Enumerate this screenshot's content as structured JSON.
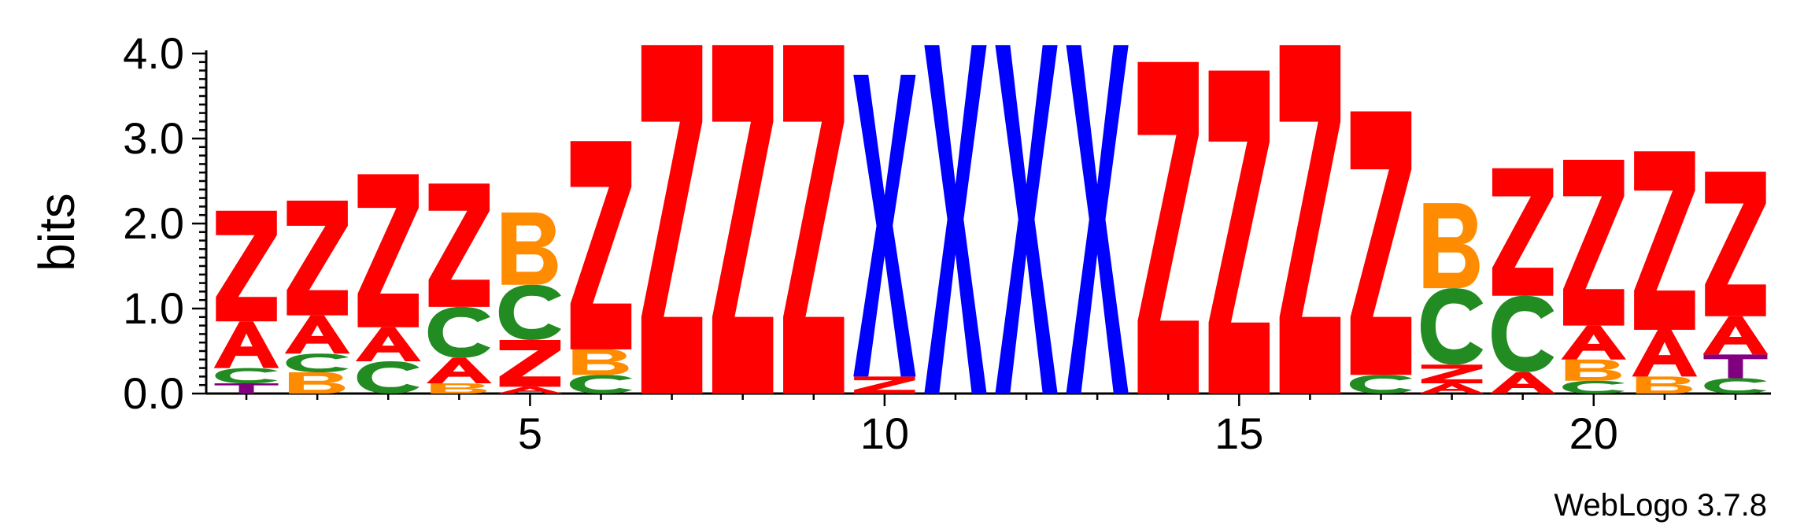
{
  "chart_data": {
    "type": "sequence-logo",
    "title": "",
    "xlabel": "",
    "ylabel": "bits",
    "ylim": [
      0,
      4.0
    ],
    "yticks": [
      "0.0",
      "1.0",
      "2.0",
      "3.0",
      "4.0"
    ],
    "xticks": [
      5,
      10,
      15,
      20
    ],
    "footer": "WebLogo 3.7.8",
    "colors": {
      "Z": "#ff0000",
      "A": "#ff0000",
      "X": "#0000ff",
      "C": "#228b22",
      "B": "#ff8c00",
      "T": "#800080"
    },
    "positions": [
      {
        "pos": 1,
        "stack": [
          [
            "T",
            0.12
          ],
          [
            "C",
            0.18
          ],
          [
            "A",
            0.55
          ],
          [
            "Z",
            1.3
          ]
        ]
      },
      {
        "pos": 2,
        "stack": [
          [
            "B",
            0.25
          ],
          [
            "C",
            0.22
          ],
          [
            "A",
            0.45
          ],
          [
            "Z",
            1.35
          ]
        ]
      },
      {
        "pos": 3,
        "stack": [
          [
            "C",
            0.38
          ],
          [
            "A",
            0.4
          ],
          [
            "Z",
            1.8
          ]
        ]
      },
      {
        "pos": 4,
        "stack": [
          [
            "B",
            0.12
          ],
          [
            "A",
            0.3
          ],
          [
            "C",
            0.6
          ],
          [
            "Z",
            1.45
          ]
        ]
      },
      {
        "pos": 5,
        "stack": [
          [
            "A",
            0.08
          ],
          [
            "Z",
            0.55
          ],
          [
            "C",
            0.65
          ],
          [
            "B",
            0.85
          ]
        ]
      },
      {
        "pos": 6,
        "stack": [
          [
            "C",
            0.22
          ],
          [
            "B",
            0.3
          ],
          [
            "Z",
            2.45
          ]
        ]
      },
      {
        "pos": 7,
        "stack": [
          [
            "Z",
            4.1
          ]
        ]
      },
      {
        "pos": 8,
        "stack": [
          [
            "Z",
            4.1
          ]
        ]
      },
      {
        "pos": 9,
        "stack": [
          [
            "Z",
            4.1
          ]
        ]
      },
      {
        "pos": 10,
        "stack": [
          [
            "Z",
            0.2
          ],
          [
            "X",
            3.55
          ]
        ]
      },
      {
        "pos": 11,
        "stack": [
          [
            "X",
            4.1
          ]
        ]
      },
      {
        "pos": 12,
        "stack": [
          [
            "X",
            4.1
          ]
        ]
      },
      {
        "pos": 13,
        "stack": [
          [
            "X",
            4.1
          ]
        ]
      },
      {
        "pos": 14,
        "stack": [
          [
            "Z",
            3.9
          ]
        ]
      },
      {
        "pos": 15,
        "stack": [
          [
            "Z",
            3.8
          ]
        ]
      },
      {
        "pos": 16,
        "stack": [
          [
            "Z",
            4.1
          ]
        ]
      },
      {
        "pos": 17,
        "stack": [
          [
            "C",
            0.22
          ],
          [
            "Z",
            3.1
          ]
        ]
      },
      {
        "pos": 18,
        "stack": [
          [
            "A",
            0.12
          ],
          [
            "Z",
            0.22
          ],
          [
            "C",
            0.9
          ],
          [
            "B",
            1.0
          ]
        ]
      },
      {
        "pos": 19,
        "stack": [
          [
            "A",
            0.25
          ],
          [
            "C",
            0.9
          ],
          [
            "Z",
            1.5
          ]
        ]
      },
      {
        "pos": 20,
        "stack": [
          [
            "C",
            0.15
          ],
          [
            "B",
            0.25
          ],
          [
            "A",
            0.4
          ],
          [
            "Z",
            1.95
          ]
        ]
      },
      {
        "pos": 21,
        "stack": [
          [
            "B",
            0.2
          ],
          [
            "A",
            0.55
          ],
          [
            "Z",
            2.1
          ]
        ]
      },
      {
        "pos": 22,
        "stack": [
          [
            "C",
            0.18
          ],
          [
            "T",
            0.28
          ],
          [
            "A",
            0.45
          ],
          [
            "Z",
            1.7
          ]
        ]
      }
    ]
  }
}
